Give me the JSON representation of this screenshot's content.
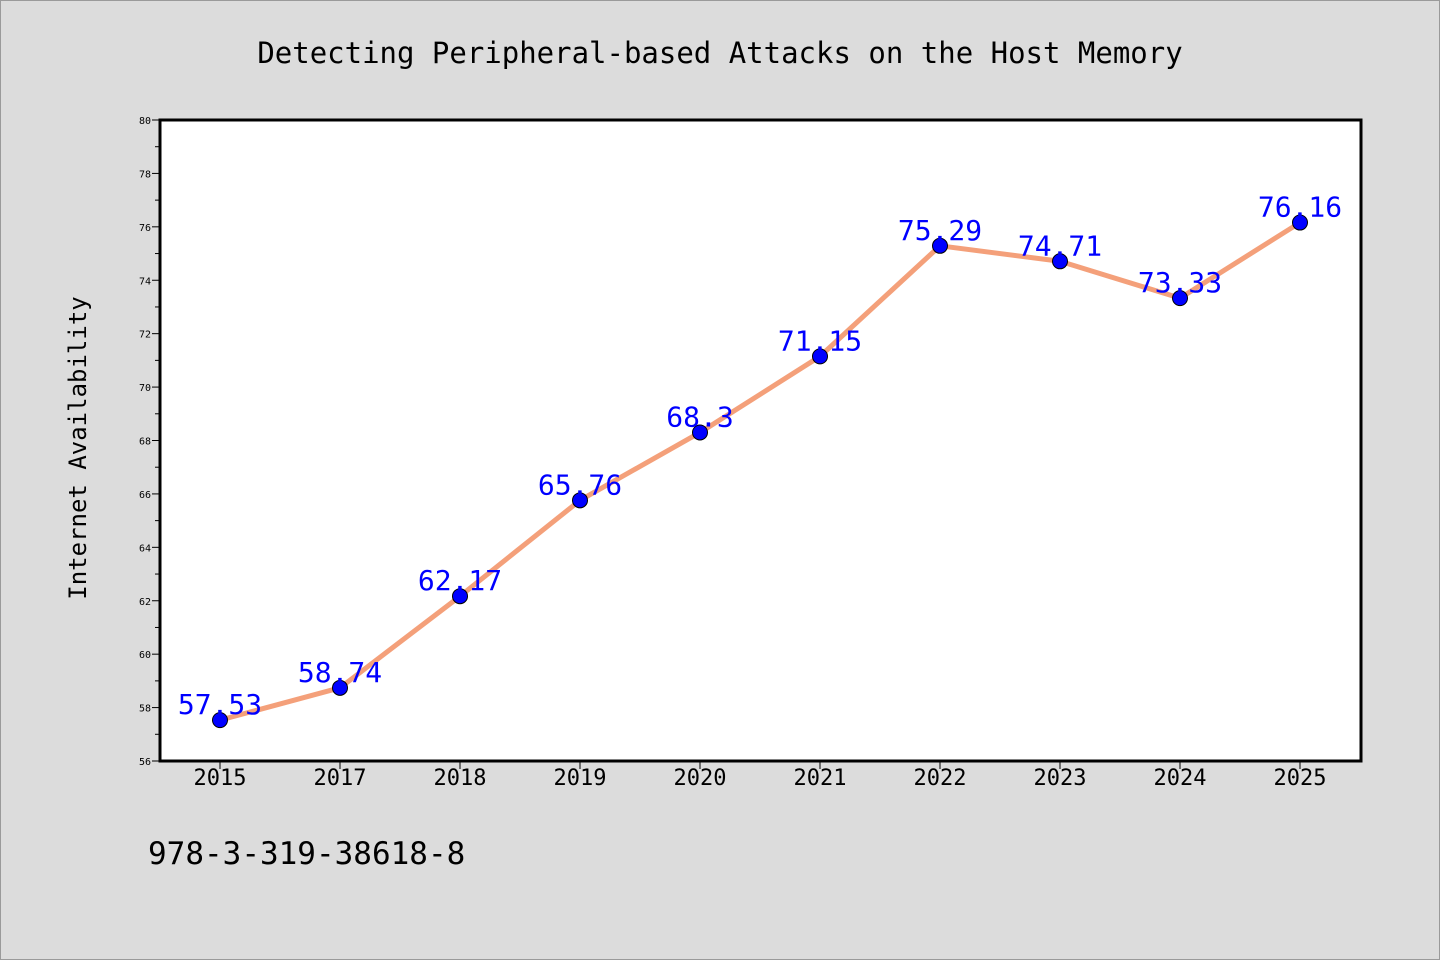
{
  "figure": {
    "background": "#dcdcdc",
    "plot_background": "#ffffff",
    "footer_text": "978-3-319-38618-8"
  },
  "chart_data": {
    "type": "line",
    "title": "Detecting Peripheral-based Attacks on the Host Memory",
    "xlabel": "",
    "ylabel": "Internet Availability",
    "categories": [
      "2015",
      "2017",
      "2018",
      "2019",
      "2020",
      "2021",
      "2022",
      "2023",
      "2024",
      "2025"
    ],
    "series": [
      {
        "values": [
          57.53,
          58.74,
          62.17,
          65.76,
          68.3,
          71.15,
          75.29,
          74.71,
          73.33,
          76.16
        ],
        "labels": [
          "57.53",
          "58.74",
          "62.17",
          "65.76",
          "68.3",
          "71.15",
          "75.29",
          "74.71",
          "73.33",
          "76.16"
        ],
        "line_color": "#f4a07a",
        "marker_color": "#0000ff",
        "label_color": "#0000ff"
      }
    ],
    "ylim": [
      56,
      80
    ],
    "yticks": [
      56,
      58,
      60,
      62,
      64,
      66,
      68,
      70,
      72,
      74,
      76,
      78,
      80
    ],
    "ytick_labels": [
      "56",
      "58",
      "60",
      "62",
      "64",
      "66",
      "68",
      "70",
      "72",
      "74",
      "76",
      "78",
      "80"
    ],
    "grid": false,
    "legend": "none"
  }
}
